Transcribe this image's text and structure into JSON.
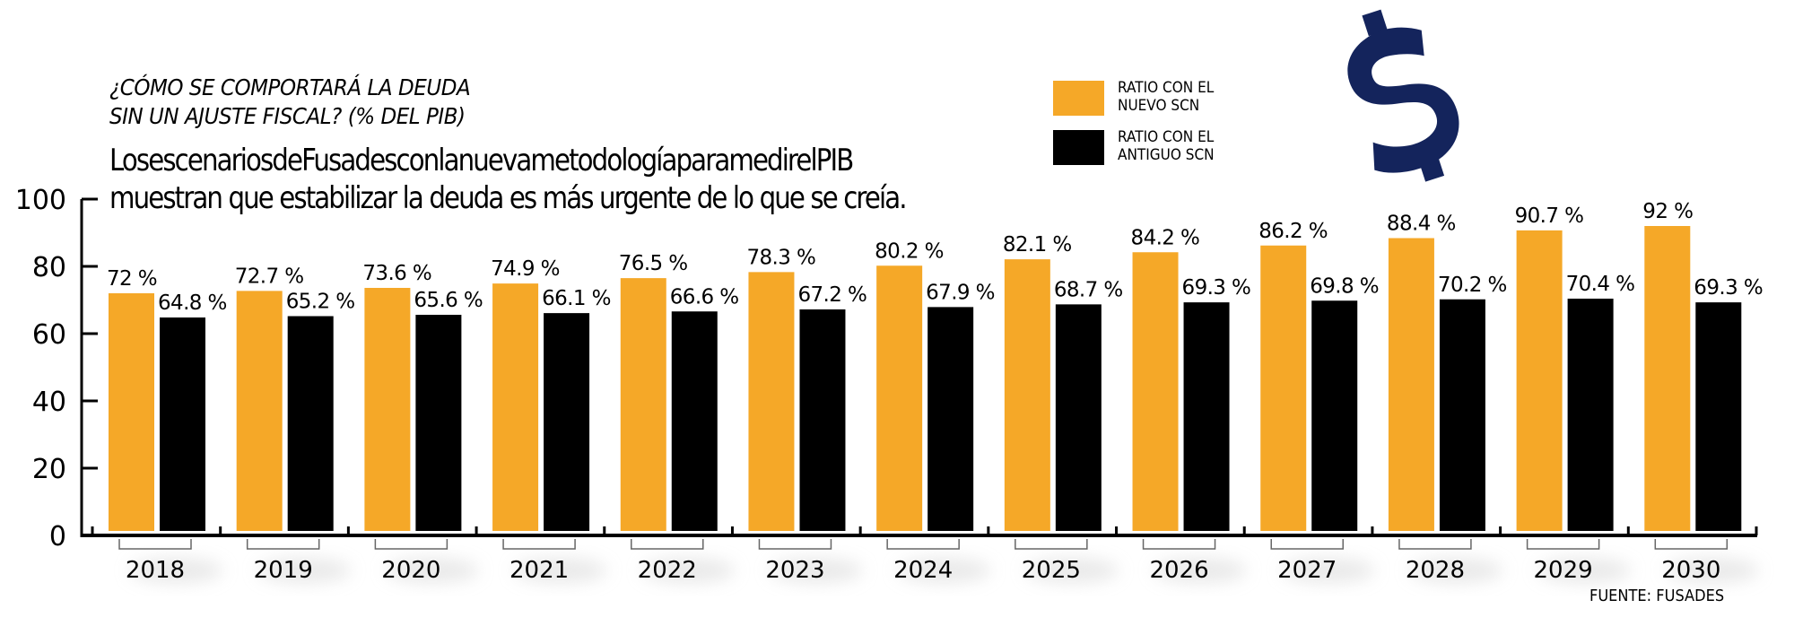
{
  "header": {
    "title_line1": "¿CÓMO SE COMPORTARÁ LA DEUDA",
    "title_line2": "SIN UN AJUSTE FISCAL? (% DEL PIB)",
    "subtitle_line1": "LosescenariosdeFusadesconlanuevametodologíaparamedirelPIB",
    "subtitle_line2": "muestran que estabilizar la deuda es más urgente de lo que se creía."
  },
  "legend": [
    {
      "label": "RATIO CON EL\nNUEVO SCN",
      "color": "#f5a828"
    },
    {
      "label": "RATIO CON EL\nANTIGUO SCN",
      "color": "#000000"
    }
  ],
  "decoration": {
    "icon": "dollar-sign-icon",
    "color": "#14245c"
  },
  "source": "FUENTE: FUSADES",
  "chart_data": {
    "type": "bar",
    "title": "¿CÓMO SE COMPORTARÁ LA DEUDA SIN UN AJUSTE FISCAL? (% DEL PIB)",
    "xlabel": "",
    "ylabel": "% del PIB",
    "ylim": [
      0,
      100
    ],
    "yticks": [
      0,
      20,
      40,
      60,
      80,
      100
    ],
    "grid": false,
    "legend_position": "top-right",
    "categories": [
      "2018",
      "2019",
      "2020",
      "2021",
      "2022",
      "2023",
      "2024",
      "2025",
      "2026",
      "2027",
      "2028",
      "2029",
      "2030"
    ],
    "series": [
      {
        "name": "RATIO CON EL NUEVO SCN",
        "color": "#f5a828",
        "values": [
          72,
          72.7,
          73.6,
          74.9,
          76.5,
          78.3,
          80.2,
          82.1,
          84.2,
          86.2,
          88.4,
          90.7,
          92
        ],
        "labels": [
          "72 %",
          "72.7 %",
          "73.6 %",
          "74.9 %",
          "76.5 %",
          "78.3 %",
          "80.2 %",
          "82.1 %",
          "84.2 %",
          "86.2 %",
          "88.4 %",
          "90.7 %",
          "92 %"
        ]
      },
      {
        "name": "RATIO CON EL ANTIGUO SCN",
        "color": "#000000",
        "values": [
          64.8,
          65.2,
          65.6,
          66.1,
          66.6,
          67.2,
          67.9,
          68.7,
          69.3,
          69.8,
          70.2,
          70.4,
          69.3
        ],
        "labels": [
          "64.8 %",
          "65.2 %",
          "65.6 %",
          "66.1 %",
          "66.6 %",
          "67.2 %",
          "67.9 %",
          "68.7 %",
          "69.3 %",
          "69.8 %",
          "70.2 %",
          "70.4 %",
          "69.3 %"
        ]
      }
    ]
  }
}
